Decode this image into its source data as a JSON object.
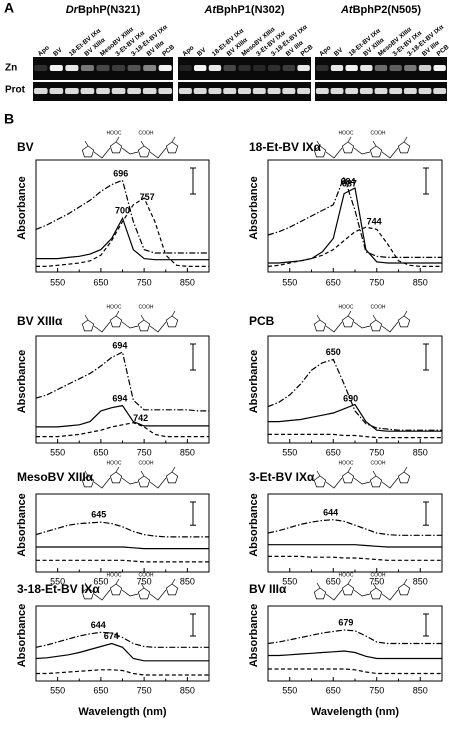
{
  "panel_a": {
    "label": "A",
    "rows": [
      "Zn",
      "Prot"
    ],
    "groups": [
      {
        "title_italic": "Dr",
        "title_rest": "BphP(N321)",
        "lanes": [
          "Apo",
          "BV",
          "18-Et-BV IXα",
          "BV XIIIα",
          "MesoBV XIIIα",
          "3-Et-BV IXα",
          "3-18-Et-BV IXα",
          "BV IIIα",
          "PCB"
        ]
      },
      {
        "title_italic": "At",
        "title_rest": "BphP1(N302)",
        "lanes": [
          "Apo",
          "BV",
          "18-Et-BV IXα",
          "BV XIIIα",
          "MesoBV XIIIα",
          "3-Et-BV IXα",
          "3-18-Et-BV IXα",
          "BV IIIα",
          "PCB"
        ]
      },
      {
        "title_italic": "At",
        "title_rest": "BphP2(N505)",
        "lanes": [
          "Apo",
          "BV",
          "18-Et-BV IXα",
          "BV XIIIα",
          "MesoBV XIIIα",
          "3-Et-BV IXα",
          "3-18-Et-BV IXα",
          "BV IIIα",
          "PCB"
        ]
      }
    ]
  },
  "panel_b": {
    "label": "B",
    "xlabel": "Wavelength (nm)",
    "ylabel": "Absorbance",
    "x": [
      500,
      525,
      550,
      575,
      600,
      625,
      650,
      675,
      700,
      725,
      750,
      775,
      800,
      825,
      850,
      875,
      900
    ],
    "xlim": [
      500,
      900
    ],
    "xticks": [
      550,
      650,
      750,
      850
    ],
    "ylim": [
      0,
      1
    ],
    "plots": [
      {
        "title": "BV",
        "structure_labels": [
          "HOOC",
          "COOH"
        ],
        "series": [
          {
            "style": "dash-dot",
            "values": [
              0.38,
              0.42,
              0.47,
              0.52,
              0.58,
              0.64,
              0.72,
              0.78,
              0.82,
              0.45,
              0.2,
              0.17,
              0.17,
              0.17,
              0.17,
              0.17,
              0.17
            ],
            "peaks": [
              696
            ]
          },
          {
            "style": "solid",
            "values": [
              0.12,
              0.12,
              0.12,
              0.13,
              0.14,
              0.16,
              0.2,
              0.3,
              0.48,
              0.2,
              0.12,
              0.11,
              0.11,
              0.11,
              0.11,
              0.11,
              0.11
            ],
            "peaks": [
              700
            ]
          },
          {
            "style": "dashed",
            "values": [
              0.05,
              0.05,
              0.06,
              0.07,
              0.08,
              0.1,
              0.15,
              0.28,
              0.45,
              0.6,
              0.66,
              0.45,
              0.15,
              0.06,
              0.05,
              0.05,
              0.05
            ],
            "peaks": [
              757
            ]
          }
        ]
      },
      {
        "title": "18-Et-BV IXα",
        "structure_labels": [
          "HOOC",
          "COOH"
        ],
        "series": [
          {
            "style": "dash-dot",
            "values": [
              0.33,
              0.36,
              0.4,
              0.45,
              0.5,
              0.55,
              0.6,
              0.85,
              0.55,
              0.18,
              0.14,
              0.13,
              0.13,
              0.13,
              0.13,
              0.13,
              0.13
            ],
            "peaks": [
              684
            ]
          },
          {
            "style": "solid",
            "values": [
              0.08,
              0.08,
              0.09,
              0.1,
              0.12,
              0.18,
              0.3,
              0.7,
              0.75,
              0.2,
              0.09,
              0.08,
              0.08,
              0.08,
              0.08,
              0.08,
              0.08
            ],
            "peaks": [
              687
            ]
          },
          {
            "style": "dashed",
            "values": [
              0.05,
              0.06,
              0.08,
              0.1,
              0.12,
              0.15,
              0.2,
              0.28,
              0.36,
              0.4,
              0.38,
              0.25,
              0.1,
              0.06,
              0.05,
              0.05,
              0.05
            ],
            "peaks": [
              744
            ]
          }
        ]
      },
      {
        "title": "BV XIIIα",
        "structure_labels": [
          "HOOC",
          "COOH"
        ],
        "series": [
          {
            "style": "dash-dot",
            "values": [
              0.42,
              0.45,
              0.5,
              0.55,
              0.6,
              0.65,
              0.72,
              0.8,
              0.85,
              0.4,
              0.31,
              0.31,
              0.31,
              0.31,
              0.31,
              0.3,
              0.3
            ],
            "peaks": [
              694
            ]
          },
          {
            "style": "solid",
            "values": [
              0.15,
              0.15,
              0.15,
              0.16,
              0.17,
              0.2,
              0.3,
              0.33,
              0.35,
              0.2,
              0.16,
              0.16,
              0.16,
              0.16,
              0.16,
              0.16,
              0.16
            ],
            "peaks": [
              694
            ]
          },
          {
            "style": "dashed",
            "values": [
              0.06,
              0.06,
              0.06,
              0.07,
              0.08,
              0.1,
              0.12,
              0.15,
              0.17,
              0.19,
              0.15,
              0.08,
              0.06,
              0.06,
              0.06,
              0.06,
              0.06
            ],
            "peaks": [
              742
            ]
          }
        ]
      },
      {
        "title": "PCB",
        "structure_labels": [
          "HOOC",
          "COOH"
        ],
        "series": [
          {
            "style": "dash-dot",
            "values": [
              0.34,
              0.38,
              0.45,
              0.55,
              0.68,
              0.75,
              0.78,
              0.55,
              0.3,
              0.18,
              0.14,
              0.13,
              0.12,
              0.12,
              0.12,
              0.12,
              0.12
            ],
            "peaks": [
              650
            ]
          },
          {
            "style": "solid",
            "values": [
              0.2,
              0.2,
              0.21,
              0.22,
              0.24,
              0.26,
              0.28,
              0.32,
              0.36,
              0.2,
              0.12,
              0.11,
              0.11,
              0.11,
              0.11,
              0.11,
              0.11
            ],
            "peaks": [
              690
            ]
          },
          {
            "style": "dashed",
            "values": [
              0.08,
              0.08,
              0.08,
              0.08,
              0.08,
              0.08,
              0.08,
              0.07,
              0.07,
              0.06,
              0.05,
              0.05,
              0.05,
              0.05,
              0.05,
              0.05,
              0.05
            ],
            "peaks": []
          }
        ]
      },
      {
        "title": "MesoBV XIIIα",
        "structure_labels": [
          "HOOC",
          "COOH"
        ],
        "series": [
          {
            "style": "dash-dot",
            "values": [
              0.48,
              0.52,
              0.56,
              0.6,
              0.62,
              0.63,
              0.64,
              0.62,
              0.58,
              0.52,
              0.48,
              0.46,
              0.45,
              0.45,
              0.45,
              0.45,
              0.45
            ],
            "peaks": [
              645
            ]
          },
          {
            "style": "solid",
            "values": [
              0.32,
              0.32,
              0.32,
              0.32,
              0.32,
              0.32,
              0.32,
              0.32,
              0.32,
              0.31,
              0.3,
              0.3,
              0.3,
              0.3,
              0.3,
              0.3,
              0.3
            ],
            "peaks": []
          },
          {
            "style": "dashed",
            "values": [
              0.15,
              0.15,
              0.15,
              0.15,
              0.15,
              0.15,
              0.15,
              0.15,
              0.15,
              0.14,
              0.13,
              0.13,
              0.13,
              0.13,
              0.13,
              0.13,
              0.13
            ],
            "peaks": []
          }
        ]
      },
      {
        "title": "3-Et-BV IXα",
        "structure_labels": [
          "HOOC",
          "COOH"
        ],
        "series": [
          {
            "style": "dash-dot",
            "values": [
              0.5,
              0.53,
              0.57,
              0.61,
              0.64,
              0.66,
              0.67,
              0.65,
              0.6,
              0.55,
              0.5,
              0.48,
              0.47,
              0.47,
              0.47,
              0.47,
              0.47
            ],
            "peaks": [
              644
            ]
          },
          {
            "style": "solid",
            "values": [
              0.35,
              0.35,
              0.35,
              0.35,
              0.35,
              0.35,
              0.35,
              0.35,
              0.35,
              0.34,
              0.33,
              0.32,
              0.32,
              0.32,
              0.32,
              0.32,
              0.32
            ],
            "peaks": []
          },
          {
            "style": "dashed",
            "values": [
              0.2,
              0.2,
              0.2,
              0.2,
              0.19,
              0.19,
              0.19,
              0.18,
              0.18,
              0.17,
              0.16,
              0.15,
              0.15,
              0.15,
              0.15,
              0.15,
              0.15
            ],
            "peaks": []
          }
        ]
      },
      {
        "title": "3-18-Et-BV IXα",
        "structure_labels": [
          "HOOC",
          "COOH"
        ],
        "series": [
          {
            "style": "dash-dot",
            "values": [
              0.45,
              0.48,
              0.52,
              0.56,
              0.6,
              0.63,
              0.65,
              0.64,
              0.58,
              0.5,
              0.46,
              0.45,
              0.45,
              0.45,
              0.45,
              0.45,
              0.45
            ],
            "peaks": [
              644
            ]
          },
          {
            "style": "solid",
            "values": [
              0.3,
              0.31,
              0.33,
              0.35,
              0.38,
              0.42,
              0.46,
              0.5,
              0.45,
              0.3,
              0.27,
              0.27,
              0.27,
              0.27,
              0.27,
              0.27,
              0.27
            ],
            "peaks": [
              674
            ]
          },
          {
            "style": "dashed",
            "values": [
              0.1,
              0.1,
              0.11,
              0.12,
              0.13,
              0.14,
              0.15,
              0.15,
              0.14,
              0.1,
              0.08,
              0.08,
              0.08,
              0.08,
              0.08,
              0.08,
              0.08
            ],
            "peaks": []
          }
        ]
      },
      {
        "title": "BV IIIα",
        "structure_labels": [
          "HOOC",
          "COOH"
        ],
        "series": [
          {
            "style": "dash-dot",
            "values": [
              0.5,
              0.52,
              0.55,
              0.58,
              0.61,
              0.64,
              0.66,
              0.68,
              0.67,
              0.6,
              0.52,
              0.5,
              0.5,
              0.5,
              0.5,
              0.5,
              0.5
            ],
            "peaks": [
              679
            ]
          },
          {
            "style": "solid",
            "values": [
              0.34,
              0.34,
              0.35,
              0.36,
              0.37,
              0.38,
              0.39,
              0.4,
              0.38,
              0.33,
              0.3,
              0.3,
              0.3,
              0.3,
              0.3,
              0.3,
              0.3
            ],
            "peaks": []
          },
          {
            "style": "dashed",
            "values": [
              0.16,
              0.16,
              0.16,
              0.16,
              0.16,
              0.16,
              0.16,
              0.16,
              0.15,
              0.12,
              0.1,
              0.1,
              0.1,
              0.1,
              0.1,
              0.1,
              0.1
            ],
            "peaks": []
          }
        ]
      }
    ]
  }
}
